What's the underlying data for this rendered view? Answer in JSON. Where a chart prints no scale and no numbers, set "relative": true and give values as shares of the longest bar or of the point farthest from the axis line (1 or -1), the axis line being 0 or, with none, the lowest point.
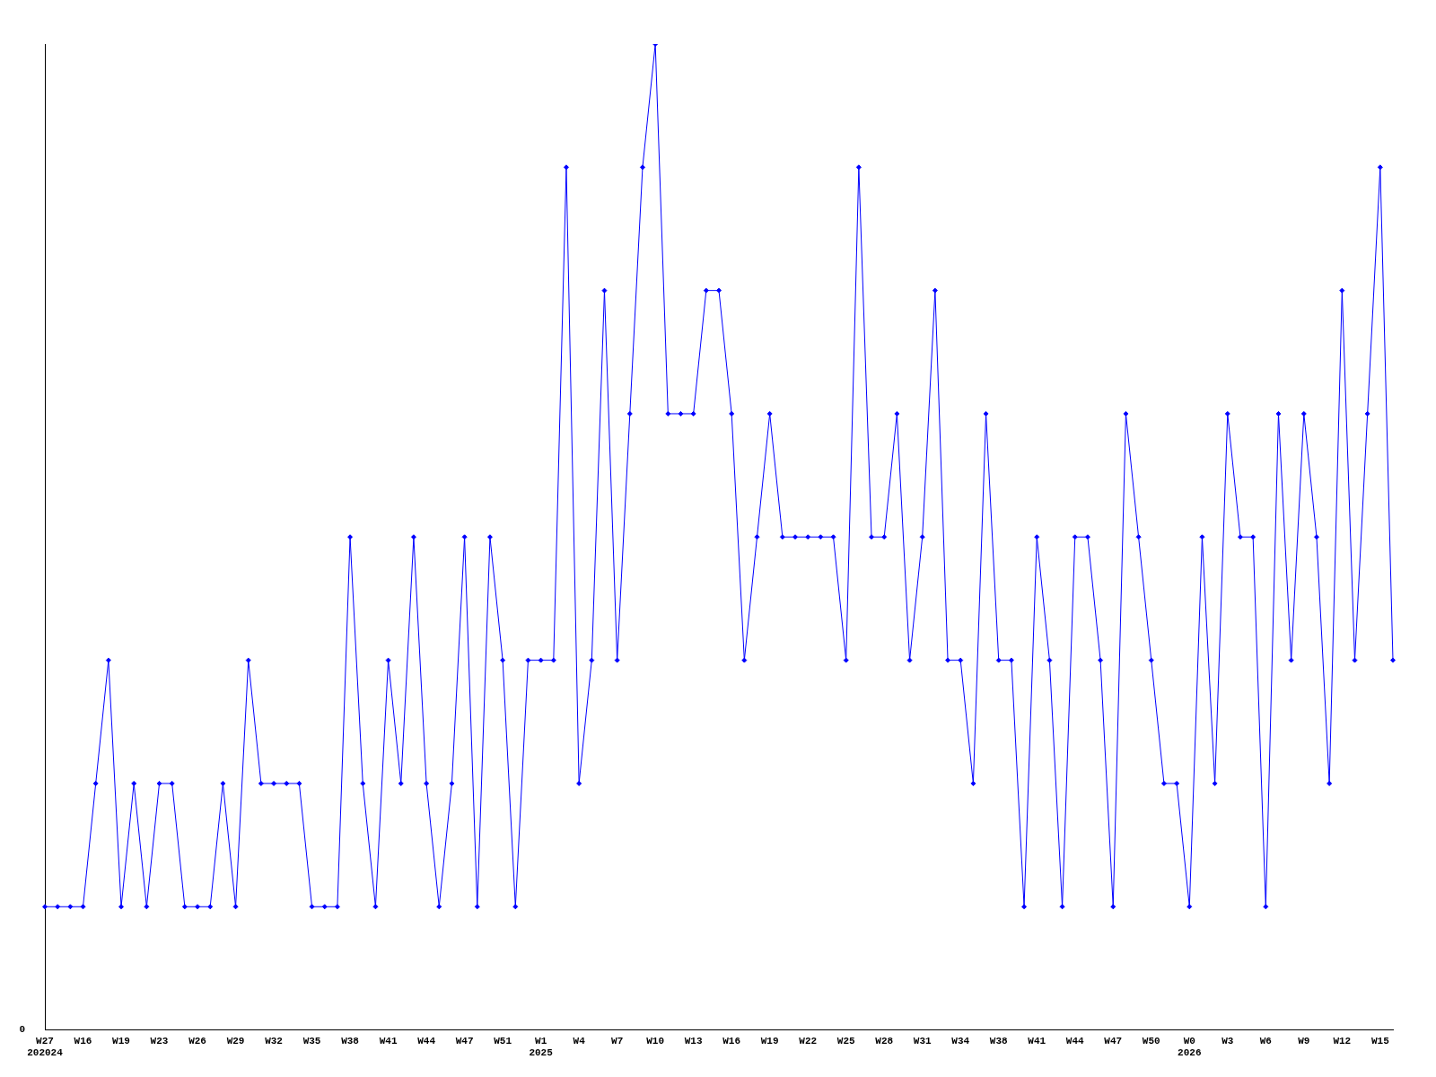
{
  "chart_data": {
    "type": "line",
    "relative": true,
    "color": "#0000ff",
    "marker": "diamond",
    "grid": false,
    "legend": false,
    "categories": [
      "W27\n202024",
      null,
      null,
      "W16",
      null,
      null,
      "W19",
      null,
      null,
      "W23",
      null,
      null,
      "W26",
      null,
      null,
      "W29",
      null,
      null,
      "W32",
      null,
      null,
      "W35",
      null,
      null,
      "W38",
      null,
      null,
      "W41",
      null,
      null,
      "W44",
      null,
      null,
      "W47",
      null,
      null,
      "W51",
      null,
      null,
      "W1\n2025",
      null,
      null,
      "W4",
      null,
      null,
      "W7",
      null,
      null,
      "W10",
      null,
      null,
      "W13",
      null,
      null,
      "W16",
      null,
      null,
      "W19",
      null,
      null,
      "W22",
      null,
      null,
      "W25",
      null,
      null,
      "W28",
      null,
      null,
      "W31",
      null,
      null,
      "W34",
      null,
      null,
      "W38",
      null,
      null,
      "W41",
      null,
      null,
      "W44",
      null,
      null,
      "W47",
      null,
      null,
      "W50",
      null,
      null,
      "W0\n2026",
      null,
      null,
      "W3",
      null,
      null,
      "W6",
      null,
      null,
      "W9",
      null,
      null,
      "W12",
      null,
      null,
      "W15",
      null
    ],
    "values": [
      0.125,
      0.125,
      0.125,
      0.125,
      0.25,
      0.375,
      0.125,
      0.25,
      0.125,
      0.25,
      0.25,
      0.125,
      0.125,
      0.125,
      0.25,
      0.125,
      0.375,
      0.25,
      0.25,
      0.25,
      0.25,
      0.125,
      0.125,
      0.125,
      0.5,
      0.25,
      0.125,
      0.375,
      0.25,
      0.5,
      0.25,
      0.125,
      0.25,
      0.5,
      0.125,
      0.5,
      0.375,
      0.125,
      0.375,
      0.375,
      0.375,
      0.875,
      0.25,
      0.375,
      0.75,
      0.375,
      0.625,
      0.875,
      1,
      0.625,
      0.625,
      0.625,
      0.75,
      0.75,
      0.625,
      0.375,
      0.5,
      0.625,
      0.5,
      0.5,
      0.5,
      0.5,
      0.5,
      0.375,
      0.875,
      0.5,
      0.5,
      0.625,
      0.375,
      0.5,
      0.75,
      0.375,
      0.375,
      0.25,
      0.625,
      0.375,
      0.375,
      0.125,
      0.5,
      0.375,
      0.125,
      0.5,
      0.5,
      0.375,
      0.125,
      0.625,
      0.5,
      0.375,
      0.25,
      0.25,
      0.125,
      0.5,
      0.25,
      0.625,
      0.5,
      0.5,
      0.125,
      0.625,
      0.375,
      0.625,
      0.5,
      0.25,
      0.75,
      0.375,
      0.625,
      0.875,
      0.375
    ],
    "annotations": [
      "0"
    ]
  }
}
